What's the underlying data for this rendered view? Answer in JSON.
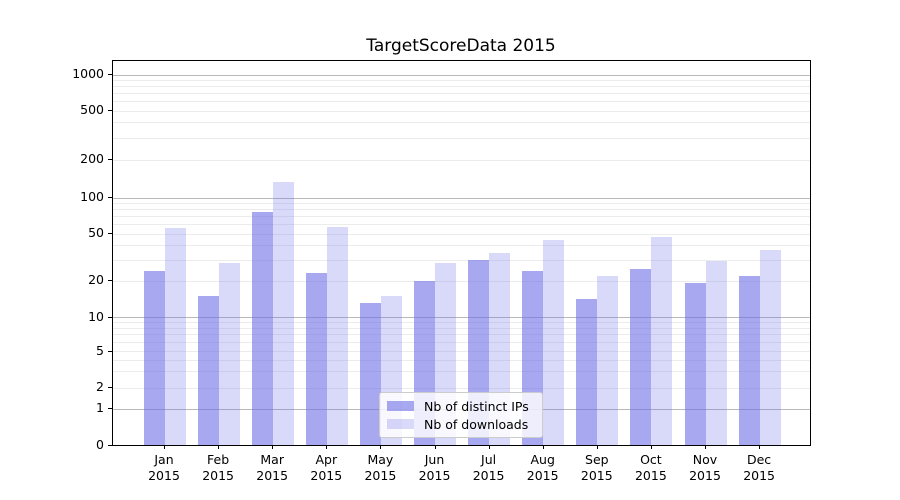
{
  "chart_data": {
    "type": "bar",
    "title": "TargetScoreData 2015",
    "categories": [
      "Jan",
      "Feb",
      "Mar",
      "Apr",
      "May",
      "Jun",
      "Jul",
      "Aug",
      "Sep",
      "Oct",
      "Nov",
      "Dec"
    ],
    "category_year": "2015",
    "series": [
      {
        "name": "Nb of distinct IPs",
        "key": "distinct-ips",
        "color": "rgba(110,110,230,0.6)",
        "values": [
          24,
          15,
          76,
          23,
          13,
          20,
          30,
          24,
          14,
          25,
          19,
          22
        ]
      },
      {
        "name": "Nb of downloads",
        "key": "downloads",
        "color": "rgba(110,110,230,0.26)",
        "values": [
          56,
          28,
          132,
          57,
          15,
          28,
          34,
          44,
          22,
          47,
          29,
          36
        ]
      }
    ],
    "yscale": "symlog",
    "y_ticks": [
      0,
      1,
      2,
      5,
      10,
      20,
      50,
      100,
      200,
      500,
      1000
    ],
    "ylim": [
      0,
      1200
    ],
    "grid": true,
    "legend_position": "lower center"
  }
}
